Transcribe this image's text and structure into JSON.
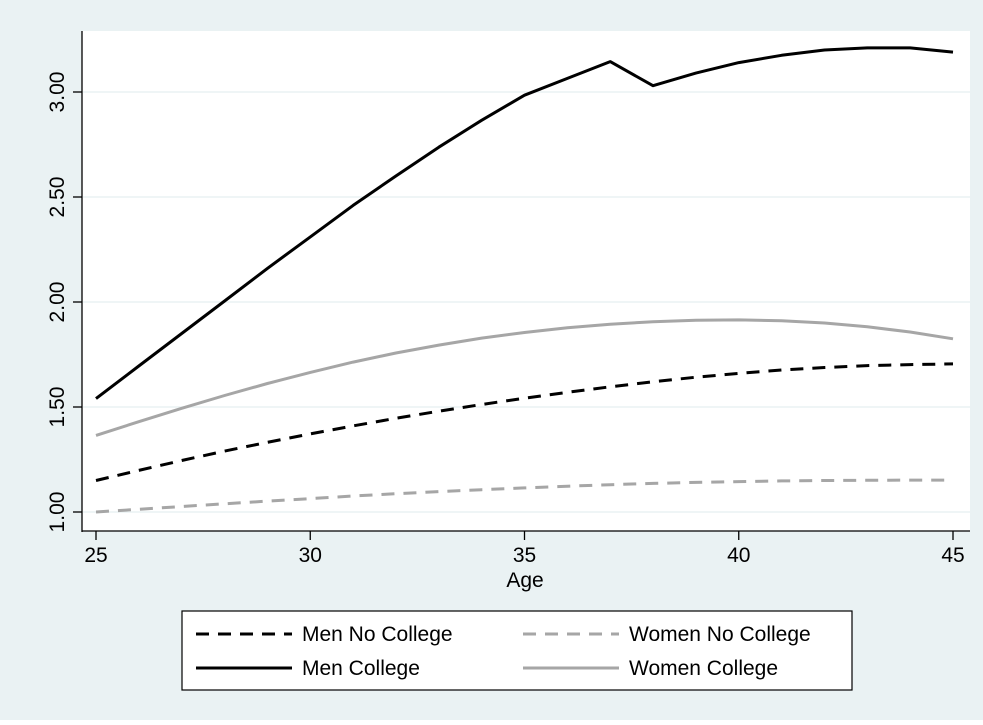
{
  "chart_data": {
    "type": "line",
    "title": "",
    "xlabel": "Age",
    "ylabel": "",
    "xlim": [
      25,
      45
    ],
    "ylim": [
      1.0,
      3.22
    ],
    "x_ticks": [
      25,
      30,
      35,
      40,
      45
    ],
    "x_tick_labels": [
      "25",
      "30",
      "35",
      "40",
      "45"
    ],
    "y_ticks": [
      1.0,
      1.5,
      2.0,
      2.5,
      3.0
    ],
    "y_tick_labels": [
      "1.00",
      "1.50",
      "2.00",
      "2.50",
      "3.00"
    ],
    "grid": "horizontal",
    "legend_position": "bottom",
    "x": [
      25,
      26,
      27,
      28,
      29,
      30,
      31,
      32,
      33,
      34,
      35,
      36,
      37,
      38,
      39,
      40,
      41,
      42,
      43,
      44,
      45
    ],
    "series": [
      {
        "name": "Men No College",
        "style": "dashed",
        "color": "#000000",
        "values": [
          1.15,
          1.198,
          1.245,
          1.29,
          1.332,
          1.372,
          1.41,
          1.446,
          1.48,
          1.512,
          1.542,
          1.57,
          1.596,
          1.62,
          1.642,
          1.66,
          1.676,
          1.688,
          1.697,
          1.702,
          1.705
        ]
      },
      {
        "name": "Women No College",
        "style": "dashed",
        "color": "#a6a6a6",
        "values": [
          1.0,
          1.013,
          1.026,
          1.039,
          1.052,
          1.064,
          1.076,
          1.087,
          1.097,
          1.106,
          1.115,
          1.123,
          1.13,
          1.136,
          1.141,
          1.145,
          1.148,
          1.15,
          1.151,
          1.152,
          1.152
        ]
      },
      {
        "name": "Men College",
        "style": "solid",
        "color": "#000000",
        "values": [
          1.54,
          1.695,
          1.85,
          2.005,
          2.16,
          2.31,
          2.46,
          2.6,
          2.737,
          2.865,
          2.985,
          3.065,
          3.145,
          3.03,
          3.09,
          3.14,
          3.175,
          3.2,
          3.21,
          3.21,
          3.19
        ]
      },
      {
        "name": "Women College",
        "style": "solid",
        "color": "#a6a6a6",
        "values": [
          1.365,
          1.43,
          1.494,
          1.555,
          1.612,
          1.665,
          1.714,
          1.757,
          1.795,
          1.828,
          1.855,
          1.877,
          1.894,
          1.906,
          1.913,
          1.915,
          1.911,
          1.9,
          1.882,
          1.857,
          1.825
        ]
      }
    ]
  },
  "colors": {
    "outer_background": "#eaf2f3",
    "plot_background": "#ffffff",
    "grid": "#eaf2f3",
    "legend_background": "#ffffff"
  }
}
